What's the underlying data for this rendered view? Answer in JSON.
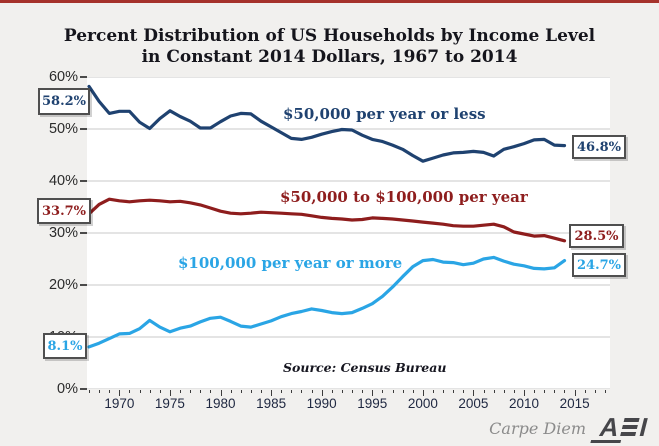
{
  "page": {
    "background_color": "#f1f0ee",
    "accent_bar_color": "#a5322b"
  },
  "title": {
    "line1": "Percent Distribution of US Households by Income Level",
    "line2": "in Constant 2014 Dollars, 1967 to 2014"
  },
  "chart_data": {
    "type": "line",
    "x_years": [
      1967,
      1968,
      1969,
      1970,
      1971,
      1972,
      1973,
      1974,
      1975,
      1976,
      1977,
      1978,
      1979,
      1980,
      1981,
      1982,
      1983,
      1984,
      1985,
      1986,
      1987,
      1988,
      1989,
      1990,
      1991,
      1992,
      1993,
      1994,
      1995,
      1996,
      1997,
      1998,
      1999,
      2000,
      2001,
      2002,
      2003,
      2004,
      2005,
      2006,
      2007,
      2008,
      2009,
      2010,
      2011,
      2012,
      2013,
      2014
    ],
    "series": [
      {
        "name": "50000-or-less",
        "label": "$50,000 per year or less",
        "color": "#1f4270",
        "start_label": "58.2%",
        "end_label": "46.8%",
        "values": [
          58.2,
          55.3,
          53.0,
          53.4,
          53.4,
          51.3,
          50.1,
          52.0,
          53.5,
          52.4,
          51.5,
          50.2,
          50.2,
          51.4,
          52.5,
          53.0,
          52.9,
          51.5,
          50.4,
          49.3,
          48.2,
          48.0,
          48.4,
          49.0,
          49.5,
          49.9,
          49.8,
          48.8,
          48.0,
          47.6,
          46.9,
          46.1,
          44.9,
          43.8,
          44.4,
          45.0,
          45.4,
          45.5,
          45.7,
          45.5,
          44.8,
          46.1,
          46.6,
          47.2,
          47.9,
          48.0,
          46.9,
          46.8
        ]
      },
      {
        "name": "50000-to-100000",
        "label": "$50,000 to $100,000 per year",
        "color": "#8e1d1d",
        "start_label": "33.7%",
        "end_label": "28.5%",
        "values": [
          33.7,
          35.5,
          36.5,
          36.2,
          36.0,
          36.2,
          36.3,
          36.2,
          36.0,
          36.1,
          35.8,
          35.4,
          34.8,
          34.2,
          33.8,
          33.7,
          33.8,
          34.0,
          33.9,
          33.8,
          33.7,
          33.6,
          33.3,
          33.0,
          32.8,
          32.7,
          32.5,
          32.6,
          32.9,
          32.8,
          32.7,
          32.5,
          32.3,
          32.1,
          31.9,
          31.7,
          31.4,
          31.3,
          31.3,
          31.5,
          31.7,
          31.2,
          30.2,
          29.8,
          29.4,
          29.5,
          29.0,
          28.5
        ]
      },
      {
        "name": "100000-or-more",
        "label": "$100,000 per year or more",
        "color": "#2aa5e5",
        "start_label": "8.1%",
        "end_label": "24.7%",
        "values": [
          8.1,
          8.8,
          9.7,
          10.6,
          10.7,
          11.6,
          13.2,
          11.9,
          11.0,
          11.7,
          12.1,
          12.9,
          13.6,
          13.8,
          13.0,
          12.1,
          11.9,
          12.5,
          13.1,
          13.9,
          14.5,
          14.9,
          15.4,
          15.1,
          14.7,
          14.5,
          14.7,
          15.5,
          16.4,
          17.8,
          19.6,
          21.6,
          23.5,
          24.7,
          24.9,
          24.4,
          24.3,
          23.9,
          24.2,
          25.0,
          25.3,
          24.6,
          24.0,
          23.7,
          23.2,
          23.1,
          23.3,
          24.7
        ]
      }
    ],
    "y_ticks": [
      "60%",
      "50%",
      "40%",
      "30%",
      "20%",
      "10%",
      "0%"
    ],
    "x_tick_years": [
      1970,
      1975,
      1980,
      1985,
      1990,
      1995,
      2000,
      2005,
      2010,
      2015
    ],
    "ylim": [
      0,
      60
    ],
    "xlim": [
      1966.8,
      2018.5
    ],
    "grid": "horizontal",
    "gridline_color": "#c9c9c9",
    "source_note": "Source: Census Bureau"
  },
  "branding": {
    "carpe_diem": "Carpe Diem",
    "aei_a": "A",
    "aei_i": "I"
  }
}
